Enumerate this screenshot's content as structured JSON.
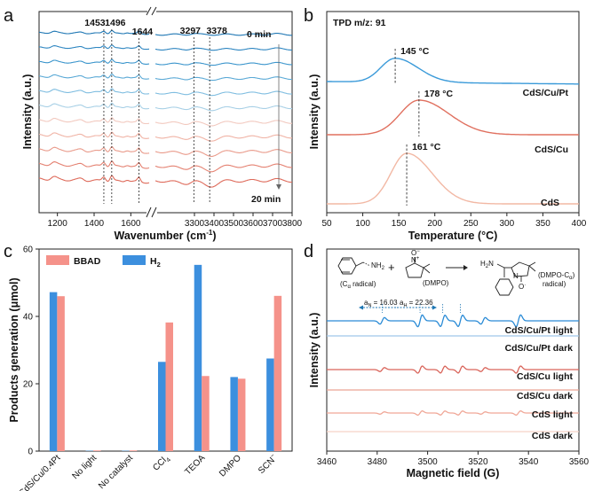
{
  "chart_data": [
    {
      "panel": "a",
      "type": "line",
      "xlabel": "Wavenumber (cm",
      "xlabel_sup": "-1",
      "xlabel_close": ")",
      "ylabel": "Intensity (a.u.)",
      "x_segments": [
        [
          1100,
          1700
        ],
        [
          3100,
          3800
        ]
      ],
      "xticks_left": [
        "1200",
        "1400",
        "1600"
      ],
      "xticks_right": [
        "3300",
        "3400",
        "3500",
        "3600",
        "3700",
        "3800"
      ],
      "peak_labels": [
        "1453",
        "1496",
        "1644",
        "3297",
        "3378"
      ],
      "peaks": [
        1453,
        1496,
        1644,
        3297,
        3378
      ],
      "time_start": "0 min",
      "time_end": "20 min",
      "n_curves": 11,
      "colors": [
        "#1f77b4",
        "#2e86c1",
        "#3b95cc",
        "#5aa9d6",
        "#7fbde0",
        "#a8d0e6",
        "#f2c9bf",
        "#f0b3a5",
        "#e99a8a",
        "#e48070",
        "#de6a5a"
      ]
    },
    {
      "panel": "b",
      "type": "line",
      "title": "TPD m/z: 91",
      "xlabel": "Temperature (°C)",
      "ylabel": "Intensity (a.u.)",
      "xlim": [
        50,
        400
      ],
      "xticks": [
        "50",
        "100",
        "150",
        "200",
        "250",
        "300",
        "350",
        "400"
      ],
      "series": [
        {
          "name": "CdS/Cu/Pt",
          "peak": 145,
          "peak_label": "145 °C",
          "color": "#3a9ad9"
        },
        {
          "name": "CdS/Cu",
          "peak": 178,
          "peak_label": "178 °C",
          "color": "#e0705f"
        },
        {
          "name": "CdS",
          "peak": 161,
          "peak_label": "161 °C",
          "color": "#f2b8a4"
        }
      ]
    },
    {
      "panel": "c",
      "type": "bar",
      "ylabel": "Products generation (μmol)",
      "ylim": [
        0,
        60
      ],
      "yticks": [
        "0",
        "20",
        "40",
        "60"
      ],
      "categories": [
        "CdS/Cu/0.4Pt",
        "No light",
        "No catalyst",
        "CCl",
        "TEOA",
        "DMPO",
        "SCN"
      ],
      "category_sub": [
        "",
        "",
        "",
        "4",
        "",
        "",
        ""
      ],
      "category_sup": [
        "",
        "",
        "",
        "",
        "",
        "",
        "−"
      ],
      "series": [
        {
          "name": "H",
          "name_sub": "2",
          "values": [
            47.2,
            0.1,
            0.1,
            26.5,
            55.3,
            22.0,
            27.5
          ],
          "color": "#3c8fde"
        },
        {
          "name": "BBAD",
          "values": [
            46.0,
            0.2,
            0.2,
            38.2,
            22.3,
            21.5,
            46.1
          ],
          "color": "#f5928a"
        }
      ]
    },
    {
      "panel": "d",
      "type": "line",
      "xlabel": "Magnetic field (G)",
      "ylabel": "Intensity (a.u.)",
      "xlim": [
        3460,
        3560
      ],
      "xticks": [
        "3460",
        "3480",
        "3500",
        "3520",
        "3540",
        "3560"
      ],
      "aN_label": "a",
      "aN_sub": "N",
      "aN_value": " = 16.03",
      "aH_label": "a",
      "aH_sub": "H",
      "aH_value": " = 22.36",
      "scheme": {
        "reactant_label": "(C",
        "reactant_sub": "α",
        "reactant_tail": " radical)",
        "nh2": "NH",
        "nh2_sub": "2",
        "plus": "+",
        "dmpo_label": "(DMPO)",
        "product_label_1": "(DMPO-C",
        "product_sub": "α",
        "product_label_2": "radical)",
        "h2n": "H",
        "h2n_sub": "2",
        "h2n_tail": "N",
        "n_plus": "N",
        "n_plus_sup": "+",
        "o_minus": "O",
        "o_minus_sup": "−",
        "n_label": "N",
        "o_label": "O",
        "o_sup": "·"
      },
      "series": [
        {
          "name": "CdS/Cu/Pt light",
          "color": "#2a8bd6",
          "amp": 1.0
        },
        {
          "name": "CdS/Cu/Pt dark",
          "color": "#9fc8ea",
          "amp": 0.0
        },
        {
          "name": "CdS/Cu light",
          "color": "#d9645a",
          "amp": 0.6
        },
        {
          "name": "CdS/Cu dark",
          "color": "#e9a595",
          "amp": 0.0
        },
        {
          "name": "CdS light",
          "color": "#f0a898",
          "amp": 0.35
        },
        {
          "name": "CdS dark",
          "color": "#f7d2c6",
          "amp": 0.0
        }
      ],
      "lines_positions": [
        3482,
        3497,
        3506,
        3513,
        3522,
        3536
      ]
    }
  ],
  "panels": {
    "a": "a",
    "b": "b",
    "c": "c",
    "d": "d"
  }
}
